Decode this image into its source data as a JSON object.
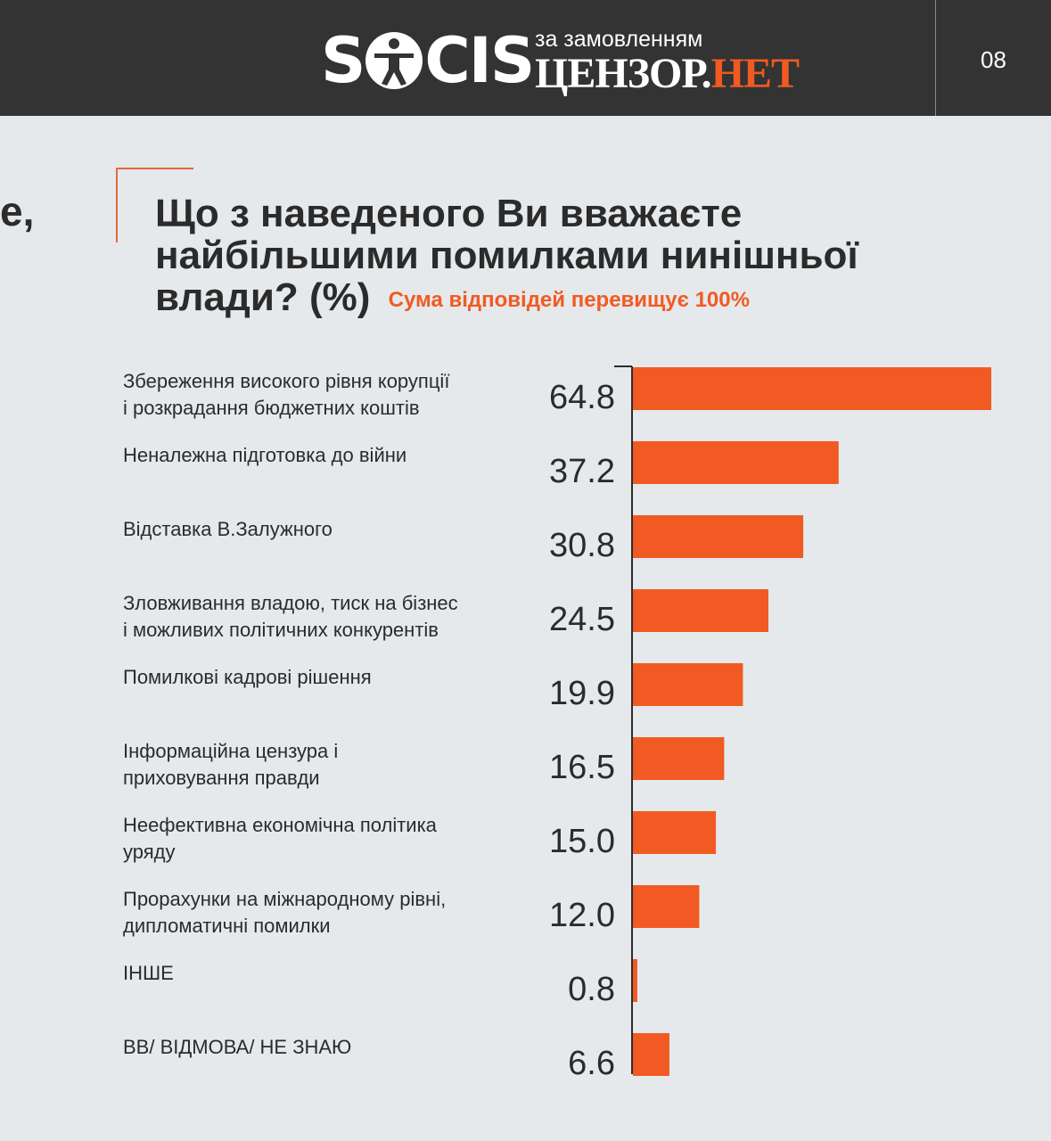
{
  "header": {
    "logo_text_left": "S",
    "logo_text_right": "CIS",
    "sponsor_prefix": "за замовленням",
    "sponsor_name_part1": "ЦЕНЗОР.",
    "sponsor_name_part2": "НЕТ",
    "page_number": "08"
  },
  "side_fragment": "е,",
  "title": "Що з наведеного Ви вважаєте найбільшими помилками нинішньої влади? (%)",
  "subtitle": "Сума відповідей перевищує 100%",
  "colors": {
    "bar": "#f15a22",
    "accent": "#f15a22",
    "background": "#e6e9eb",
    "header": "#333333",
    "text": "#2b2b2b"
  },
  "chart_data": {
    "type": "bar",
    "orientation": "horizontal",
    "categories": [
      [
        "Збереження високого рівня корупції",
        "і розкрадання бюджетних коштів"
      ],
      [
        "Неналежна підготовка до війни"
      ],
      [
        "Відставка В.Залужного"
      ],
      [
        "Зловживання владою, тиск на бізнес",
        "і можливих політичних конкурентів"
      ],
      [
        "Помилкові кадрові рішення"
      ],
      [
        "Інформаційна цензура і",
        "приховування правди"
      ],
      [
        "Неефективна економічна політика",
        "уряду"
      ],
      [
        "Прорахунки на міжнародному рівні,",
        "дипломатичні помилки"
      ],
      [
        "ІНШЕ"
      ],
      [
        "ВВ/ ВІДМОВА/ НЕ ЗНАЮ"
      ]
    ],
    "values": [
      64.8,
      37.2,
      30.8,
      24.5,
      19.9,
      16.5,
      15.0,
      12.0,
      0.8,
      6.6
    ],
    "value_labels": [
      "64.8",
      "37.2",
      "30.8",
      "24.5",
      "19.9",
      "16.5",
      "15.0",
      "12.0",
      "0.8",
      "6.6"
    ],
    "xlim": [
      0,
      64.8
    ],
    "grid": false,
    "legend": "none"
  }
}
